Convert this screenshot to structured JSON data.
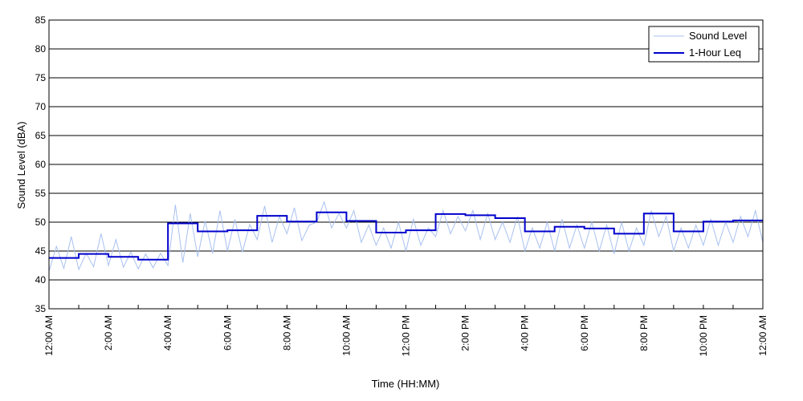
{
  "chart_data": {
    "type": "line",
    "title": "",
    "xlabel": "Time (HH:MM)",
    "ylabel": "Sound Level (dBA)",
    "ylim": [
      35,
      85
    ],
    "yticks": [
      35,
      40,
      45,
      50,
      55,
      60,
      65,
      70,
      75,
      80,
      85
    ],
    "xlim_hours": [
      0,
      24
    ],
    "xticks": [
      {
        "hour": 0,
        "label": "12:00 AM"
      },
      {
        "hour": 2,
        "label": "2:00 AM"
      },
      {
        "hour": 4,
        "label": "4:00 AM"
      },
      {
        "hour": 6,
        "label": "6:00 AM"
      },
      {
        "hour": 8,
        "label": "8:00 AM"
      },
      {
        "hour": 10,
        "label": "10:00 AM"
      },
      {
        "hour": 12,
        "label": "12:00 PM"
      },
      {
        "hour": 14,
        "label": "2:00 PM"
      },
      {
        "hour": 16,
        "label": "4:00 PM"
      },
      {
        "hour": 18,
        "label": "6:00 PM"
      },
      {
        "hour": 20,
        "label": "8:00 PM"
      },
      {
        "hour": 22,
        "label": "10:00 PM"
      },
      {
        "hour": 24,
        "label": "12:00 AM"
      }
    ],
    "grid": "horizontal",
    "legend_position": "top-right",
    "series": [
      {
        "name": "Sound Level",
        "color": "#a8c0f0",
        "x_hours": [
          0.0,
          0.25,
          0.5,
          0.75,
          1.0,
          1.25,
          1.5,
          1.75,
          2.0,
          2.25,
          2.5,
          2.75,
          3.0,
          3.25,
          3.5,
          3.75,
          4.0,
          4.25,
          4.5,
          4.75,
          5.0,
          5.25,
          5.5,
          5.75,
          6.0,
          6.25,
          6.5,
          6.75,
          7.0,
          7.25,
          7.5,
          7.75,
          8.0,
          8.25,
          8.5,
          8.75,
          9.0,
          9.25,
          9.5,
          9.75,
          10.0,
          10.25,
          10.5,
          10.75,
          11.0,
          11.25,
          11.5,
          11.75,
          12.0,
          12.25,
          12.5,
          12.75,
          13.0,
          13.25,
          13.5,
          13.75,
          14.0,
          14.25,
          14.5,
          14.75,
          15.0,
          15.25,
          15.5,
          15.75,
          16.0,
          16.25,
          16.5,
          16.75,
          17.0,
          17.25,
          17.5,
          17.75,
          18.0,
          18.25,
          18.5,
          18.75,
          19.0,
          19.25,
          19.5,
          19.75,
          20.0,
          20.25,
          20.5,
          20.75,
          21.0,
          21.25,
          21.5,
          21.75,
          22.0,
          22.25,
          22.5,
          22.75,
          23.0,
          23.25,
          23.5,
          23.75,
          24.0
        ],
        "values": [
          41.5,
          45.8,
          42.0,
          47.5,
          41.8,
          44.6,
          42.3,
          48.0,
          42.5,
          47.0,
          42.2,
          44.8,
          41.9,
          44.5,
          42.1,
          44.6,
          42.5,
          53.0,
          43.0,
          51.5,
          44.0,
          50.2,
          44.6,
          52.0,
          45.0,
          50.5,
          44.8,
          49.6,
          47.0,
          52.8,
          46.5,
          51.0,
          48.0,
          52.5,
          46.8,
          49.5,
          50.0,
          53.5,
          49.0,
          51.5,
          49.0,
          52.0,
          46.5,
          49.5,
          46.0,
          49.0,
          45.5,
          50.0,
          45.0,
          50.5,
          46.0,
          49.0,
          47.5,
          52.0,
          48.0,
          51.0,
          48.5,
          52.0,
          47.0,
          51.5,
          47.0,
          50.0,
          46.5,
          51.0,
          45.0,
          49.0,
          45.5,
          50.0,
          45.0,
          50.5,
          45.5,
          49.5,
          45.5,
          50.0,
          45.0,
          49.5,
          44.5,
          50.0,
          45.0,
          49.0,
          46.0,
          52.0,
          47.5,
          51.0,
          45.0,
          49.0,
          45.5,
          49.5,
          46.0,
          50.5,
          46.0,
          50.0,
          46.5,
          51.0,
          47.5,
          52.0,
          46.5
        ]
      },
      {
        "name": "1-Hour Leq",
        "color": "#0000cc",
        "step_values": [
          43.8,
          44.5,
          44.0,
          43.5,
          49.8,
          48.4,
          48.6,
          51.1,
          50.1,
          51.7,
          50.2,
          48.2,
          48.6,
          51.4,
          51.2,
          50.7,
          48.4,
          49.2,
          48.9,
          48.0,
          51.5,
          48.4,
          50.1,
          50.3
        ]
      }
    ]
  }
}
